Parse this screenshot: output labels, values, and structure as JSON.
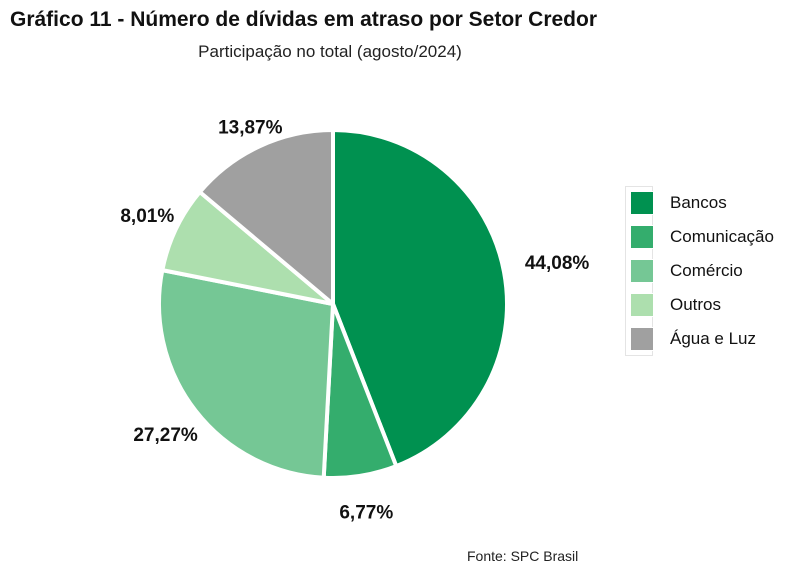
{
  "chart_data": {
    "type": "pie",
    "title": "Gráfico 11 - Número de dívidas em atraso por Setor Credor",
    "subtitle": "Participação no total (agosto/2024)",
    "categories": [
      "Bancos",
      "Comunicação",
      "Comércio",
      "Outros",
      "Água e Luz"
    ],
    "values": [
      44.08,
      6.77,
      27.27,
      8.01,
      13.87
    ],
    "labels": [
      "44,08%",
      "6,77%",
      "27,27%",
      "8,01%",
      "13,87%"
    ],
    "colors": [
      "#009150",
      "#34ad6d",
      "#75c795",
      "#addfae",
      "#a0a0a0"
    ],
    "legend_position": "right",
    "source": "Fonte: SPC Brasil"
  }
}
